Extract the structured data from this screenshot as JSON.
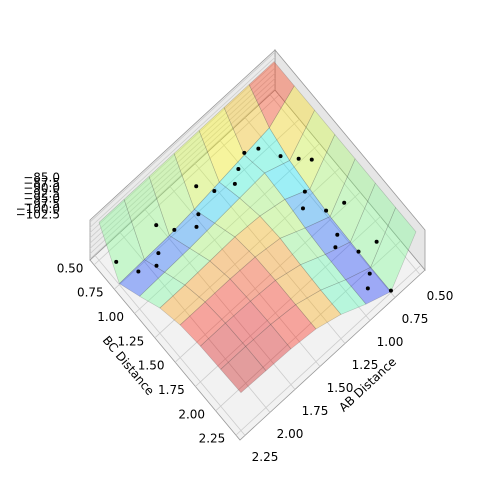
{
  "chart_data": {
    "type": "surface3d",
    "xlabel": "AB Distance",
    "ylabel": "BC Distance",
    "colormap": "jet",
    "x": [
      0.5,
      0.75,
      1.0,
      1.25,
      1.5,
      1.75,
      2.0,
      2.25
    ],
    "y": [
      0.5,
      0.75,
      1.0,
      1.25,
      1.5,
      1.75,
      2.0,
      2.25
    ],
    "z": [
      [
        -85,
        -85,
        -85,
        -85,
        -85,
        -85,
        -85,
        -85
      ],
      [
        -85,
        -94,
        -98,
        -100,
        -101.5,
        -102,
        -102.5,
        -102.5
      ],
      [
        -85,
        -96,
        -93,
        -94,
        -96,
        -97,
        -97.5,
        -97.5
      ],
      [
        -85,
        -98,
        -94,
        -91,
        -90,
        -91,
        -91.5,
        -91.5
      ],
      [
        -85,
        -100,
        -95,
        -90,
        -88,
        -87.5,
        -87.5,
        -87.5
      ],
      [
        -85,
        -101.5,
        -96,
        -90.5,
        -87.5,
        -86.5,
        -86,
        -86
      ],
      [
        -85,
        -102,
        -96.5,
        -91,
        -87.5,
        -86,
        -85.5,
        -85.5
      ],
      [
        -85,
        -102.5,
        -97,
        -91,
        -87.5,
        -86,
        -85.5,
        -85
      ]
    ],
    "xlim": [
      0.45,
      2.3
    ],
    "ylim": [
      0.45,
      2.3
    ],
    "zlim": [
      -103,
      -84
    ],
    "xticks": [
      {
        "value": 0.5,
        "label": "0.50"
      },
      {
        "value": 0.75,
        "label": "0.75"
      },
      {
        "value": 1.0,
        "label": "1.00"
      },
      {
        "value": 1.25,
        "label": "1.25"
      },
      {
        "value": 1.5,
        "label": "1.50"
      },
      {
        "value": 1.75,
        "label": "1.75"
      },
      {
        "value": 2.0,
        "label": "2.00"
      },
      {
        "value": 2.25,
        "label": "2.25"
      }
    ],
    "yticks": [
      {
        "value": 0.5,
        "label": "0.50"
      },
      {
        "value": 0.75,
        "label": "0.75"
      },
      {
        "value": 1.0,
        "label": "1.00"
      },
      {
        "value": 1.25,
        "label": "1.25"
      },
      {
        "value": 1.5,
        "label": "1.50"
      },
      {
        "value": 1.75,
        "label": "1.75"
      },
      {
        "value": 2.0,
        "label": "2.00"
      },
      {
        "value": 2.25,
        "label": "2.25"
      }
    ],
    "zticks": [
      {
        "value": -85,
        "label": "−85.0"
      },
      {
        "value": -87.5,
        "label": "−87.5"
      },
      {
        "value": -90,
        "label": "−90.0"
      },
      {
        "value": -92.5,
        "label": "−92.5"
      },
      {
        "value": -95,
        "label": "−95.0"
      },
      {
        "value": -97.5,
        "label": "−97.5"
      },
      {
        "value": -100,
        "label": "−100.0"
      },
      {
        "value": -102.5,
        "label": "−102.5"
      }
    ],
    "trajectory": {
      "color": "#000000",
      "x": [
        2.2,
        2.1,
        2.0,
        1.9,
        1.8,
        1.7,
        1.6,
        1.5,
        1.4,
        1.3,
        1.2,
        1.1,
        1.0,
        0.9,
        0.8,
        0.7,
        0.65,
        0.8,
        0.9,
        0.75,
        0.65,
        0.8,
        0.9,
        0.75,
        0.65,
        0.8,
        0.9,
        0.75
      ],
      "y": [
        0.65,
        0.8,
        0.9,
        0.8,
        0.65,
        0.75,
        0.9,
        0.8,
        0.65,
        0.75,
        0.88,
        0.8,
        0.75,
        0.8,
        0.95,
        1.05,
        1.15,
        1.25,
        1.35,
        1.45,
        1.55,
        1.65,
        1.75,
        1.85,
        1.95,
        2.05,
        2.15,
        2.25
      ],
      "z": [
        -99,
        -101,
        -98,
        -101,
        -99,
        -101,
        -97,
        -100,
        -98,
        -100,
        -95,
        -96,
        -95,
        -95,
        -96,
        -97,
        -95,
        -99,
        -98,
        -101,
        -97,
        -101,
        -98,
        -102,
        -97,
        -101,
        -99,
        -102
      ]
    }
  }
}
